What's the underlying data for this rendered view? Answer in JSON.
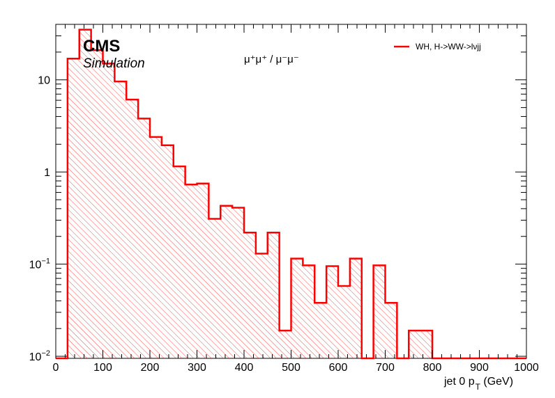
{
  "labels": {
    "experiment": "CMS",
    "status": "Simulation",
    "channel": "μ⁺μ⁺ /  μ⁻μ⁻"
  },
  "chart_data": {
    "type": "histogram",
    "xlabel": "jet 0 p_T (GeV)",
    "xlabel_main": "jet 0 p",
    "xlabel_sub": "T",
    "xlabel_unit": " (GeV)",
    "xlim": [
      0,
      1000
    ],
    "ylim": [
      0.0095,
      40
    ],
    "yscale": "log",
    "x_ticks": [
      "0",
      "100",
      "200",
      "300",
      "400",
      "500",
      "600",
      "700",
      "800",
      "900",
      "1000"
    ],
    "y_ticks": [
      {
        "value": 0.01,
        "base": "10",
        "exp": "−2"
      },
      {
        "value": 0.1,
        "base": "10",
        "exp": "−1"
      },
      {
        "value": 1,
        "label": "1"
      },
      {
        "value": 10,
        "label": "10"
      }
    ],
    "bin_width": 25,
    "series": [
      {
        "name": "WH, H->WW->lνjj",
        "color": "#ff0000",
        "bin_edges_low": [
          0,
          25,
          50,
          75,
          100,
          125,
          150,
          175,
          200,
          225,
          250,
          275,
          300,
          325,
          350,
          375,
          400,
          425,
          450,
          475,
          500,
          525,
          550,
          575,
          600,
          625,
          650,
          675,
          700,
          725,
          750,
          775,
          800,
          825,
          850,
          875,
          900,
          925,
          950,
          975
        ],
        "values": [
          0,
          17,
          35,
          21,
          15,
          9.6,
          6.1,
          3.8,
          2.4,
          1.95,
          1.15,
          0.73,
          0.75,
          0.31,
          0.43,
          0.41,
          0.22,
          0.13,
          0.22,
          0.019,
          0.115,
          0.097,
          0.038,
          0.095,
          0.058,
          0.115,
          0,
          0.097,
          0.038,
          0,
          0.019,
          0.019,
          0,
          0,
          0,
          0,
          0,
          0,
          0,
          0
        ]
      }
    ],
    "legend": {
      "position": "top-right"
    },
    "grid": false
  }
}
